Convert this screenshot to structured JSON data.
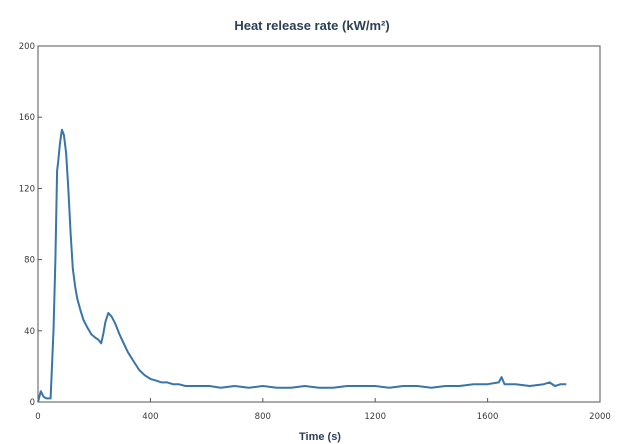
{
  "chart_data": {
    "type": "line",
    "title": "Heat release rate (kW/m²)",
    "xlabel": "Time (s)",
    "ylabel": "",
    "xlim": [
      0,
      2000
    ],
    "ylim": [
      0,
      200
    ],
    "x_ticks": [
      "0",
      "400",
      "800",
      "1200",
      "1600",
      "2000"
    ],
    "y_ticks": [
      "0",
      "40",
      "80",
      "120",
      "160",
      "200"
    ],
    "grid": false,
    "series": [
      {
        "color": "#3a74a8",
        "x": [
          0,
          10,
          20,
          30,
          45,
          55,
          62,
          68,
          72,
          78,
          85,
          92,
          100,
          108,
          116,
          124,
          132,
          140,
          150,
          162,
          175,
          190,
          205,
          215,
          225,
          232,
          240,
          250,
          262,
          275,
          290,
          305,
          320,
          340,
          360,
          380,
          400,
          420,
          440,
          460,
          480,
          500,
          525,
          550,
          580,
          610,
          650,
          700,
          750,
          800,
          850,
          900,
          950,
          1000,
          1050,
          1100,
          1150,
          1200,
          1250,
          1300,
          1350,
          1400,
          1450,
          1500,
          1550,
          1600,
          1640,
          1650,
          1660,
          1700,
          1750,
          1800,
          1820,
          1840,
          1860,
          1880
        ],
        "y": [
          0,
          6,
          3,
          2,
          2,
          40,
          80,
          130,
          135,
          145,
          153,
          150,
          140,
          120,
          95,
          75,
          65,
          58,
          52,
          46,
          42,
          38,
          36,
          35,
          33,
          38,
          45,
          50,
          48,
          44,
          38,
          33,
          28,
          23,
          18,
          15,
          13,
          12,
          11,
          11,
          10,
          10,
          9,
          9,
          9,
          9,
          8,
          9,
          8,
          9,
          8,
          8,
          9,
          8,
          8,
          9,
          9,
          9,
          8,
          9,
          9,
          8,
          9,
          9,
          10,
          10,
          11,
          14,
          10,
          10,
          9,
          10,
          11,
          9,
          10,
          10
        ]
      }
    ]
  }
}
